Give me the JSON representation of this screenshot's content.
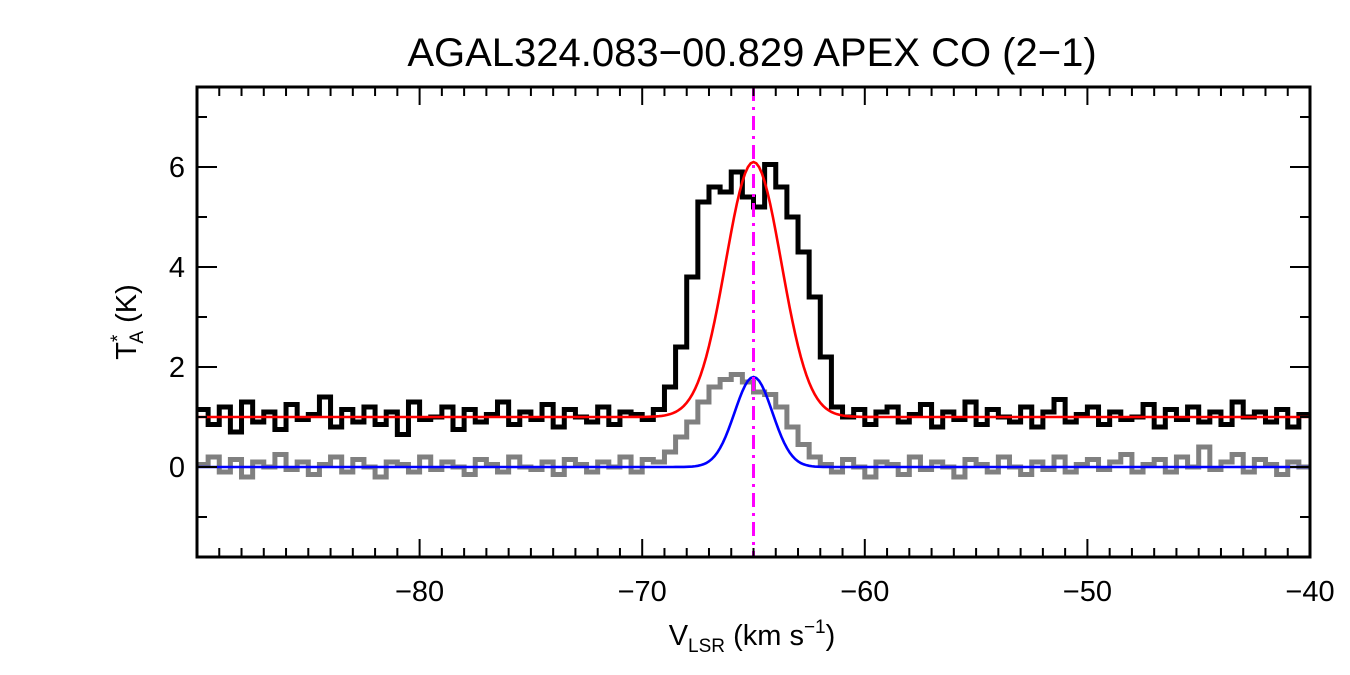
{
  "chart_data": {
    "type": "line",
    "title": "AGAL324.083−00.829  APEX CO (2−1)",
    "xlabel": {
      "main": "V",
      "sub": "LSR",
      "unit_pre": " (km s",
      "sup": "−1",
      "unit_post": ")"
    },
    "ylabel": {
      "main": "T",
      "sup": "*",
      "sub": "A",
      "unit": " (K)"
    },
    "xlim": [
      -90,
      -40
    ],
    "ylim": [
      -1.8,
      7.6
    ],
    "xticks": [
      -80,
      -70,
      -60,
      -50,
      -40
    ],
    "xtick_labels": [
      "−80",
      "−70",
      "−60",
      "−50",
      "−40"
    ],
    "yticks": [
      0,
      2,
      4,
      6
    ],
    "ytick_labels": [
      "0",
      "2",
      "4",
      "6"
    ],
    "vline": {
      "x": -65.0,
      "color": "#ff00ff",
      "style": "dash-dot"
    },
    "series": [
      {
        "style": "step",
        "color": "#000000",
        "x": [
          -90.0,
          -89.5,
          -89.0,
          -88.5,
          -88.0,
          -87.5,
          -87.0,
          -86.5,
          -86.0,
          -85.5,
          -85.0,
          -84.5,
          -84.0,
          -83.5,
          -83.0,
          -82.5,
          -82.0,
          -81.5,
          -81.0,
          -80.5,
          -80.0,
          -79.5,
          -79.0,
          -78.5,
          -78.0,
          -77.5,
          -77.0,
          -76.5,
          -76.0,
          -75.5,
          -75.0,
          -74.5,
          -74.0,
          -73.5,
          -73.0,
          -72.5,
          -72.0,
          -71.5,
          -71.0,
          -70.5,
          -70.0,
          -69.5,
          -69.0,
          -68.5,
          -68.0,
          -67.5,
          -67.0,
          -66.5,
          -66.0,
          -65.5,
          -65.0,
          -64.5,
          -64.0,
          -63.5,
          -63.0,
          -62.5,
          -62.0,
          -61.5,
          -61.0,
          -60.5,
          -60.0,
          -59.5,
          -59.0,
          -58.5,
          -58.0,
          -57.5,
          -57.0,
          -56.5,
          -56.0,
          -55.5,
          -55.0,
          -54.5,
          -54.0,
          -53.5,
          -53.0,
          -52.5,
          -52.0,
          -51.5,
          -51.0,
          -50.5,
          -50.0,
          -49.5,
          -49.0,
          -48.5,
          -48.0,
          -47.5,
          -47.0,
          -46.5,
          -46.0,
          -45.5,
          -45.0,
          -44.5,
          -44.0,
          -43.5,
          -43.0,
          -42.5,
          -42.0,
          -41.5,
          -41.0,
          -40.5
        ],
        "y": [
          1.15,
          0.85,
          1.2,
          0.7,
          1.3,
          0.9,
          1.1,
          0.75,
          1.25,
          0.95,
          1.05,
          1.4,
          0.8,
          1.15,
          0.9,
          1.2,
          0.85,
          1.1,
          0.65,
          1.3,
          0.95,
          1.0,
          1.2,
          0.75,
          1.15,
          0.9,
          1.05,
          1.3,
          0.85,
          1.1,
          0.95,
          1.25,
          0.8,
          1.15,
          1.0,
          0.9,
          1.2,
          0.85,
          1.1,
          1.05,
          0.95,
          1.15,
          1.6,
          2.4,
          3.8,
          5.3,
          5.6,
          5.5,
          5.9,
          5.4,
          5.2,
          6.05,
          5.6,
          5.0,
          4.3,
          3.4,
          2.2,
          1.2,
          1.0,
          1.15,
          0.85,
          1.1,
          1.2,
          0.9,
          1.05,
          1.25,
          0.8,
          1.1,
          0.95,
          1.3,
          0.85,
          1.15,
          1.0,
          0.9,
          1.2,
          0.8,
          1.1,
          1.35,
          0.9,
          1.05,
          1.2,
          0.85,
          1.1,
          0.95,
          1.0,
          1.25,
          0.8,
          1.15,
          0.95,
          1.2,
          0.9,
          1.1,
          0.85,
          1.3,
          1.0,
          1.1,
          0.9,
          1.15,
          0.8,
          1.05
        ]
      },
      {
        "style": "step",
        "color": "#808080",
        "x": [
          -90.0,
          -89.5,
          -89.0,
          -88.5,
          -88.0,
          -87.5,
          -87.0,
          -86.5,
          -86.0,
          -85.5,
          -85.0,
          -84.5,
          -84.0,
          -83.5,
          -83.0,
          -82.5,
          -82.0,
          -81.5,
          -81.0,
          -80.5,
          -80.0,
          -79.5,
          -79.0,
          -78.5,
          -78.0,
          -77.5,
          -77.0,
          -76.5,
          -76.0,
          -75.5,
          -75.0,
          -74.5,
          -74.0,
          -73.5,
          -73.0,
          -72.5,
          -72.0,
          -71.5,
          -71.0,
          -70.5,
          -70.0,
          -69.5,
          -69.0,
          -68.5,
          -68.0,
          -67.5,
          -67.0,
          -66.5,
          -66.0,
          -65.5,
          -65.0,
          -64.5,
          -64.0,
          -63.5,
          -63.0,
          -62.5,
          -62.0,
          -61.5,
          -61.0,
          -60.5,
          -60.0,
          -59.5,
          -59.0,
          -58.5,
          -58.0,
          -57.5,
          -57.0,
          -56.5,
          -56.0,
          -55.5,
          -55.0,
          -54.5,
          -54.0,
          -53.5,
          -53.0,
          -52.5,
          -52.0,
          -51.5,
          -51.0,
          -50.5,
          -50.0,
          -49.5,
          -49.0,
          -48.5,
          -48.0,
          -47.5,
          -47.0,
          -46.5,
          -46.0,
          -45.5,
          -45.0,
          -44.5,
          -44.0,
          -43.5,
          -43.0,
          -42.5,
          -42.0,
          -41.5,
          -41.0,
          -40.5
        ],
        "y": [
          0.05,
          0.2,
          -0.1,
          0.15,
          -0.2,
          0.1,
          0.0,
          0.25,
          -0.05,
          0.1,
          -0.15,
          0.05,
          0.2,
          -0.1,
          0.15,
          0.0,
          -0.2,
          0.1,
          0.05,
          -0.1,
          0.2,
          -0.05,
          0.1,
          0.0,
          -0.15,
          0.15,
          0.05,
          -0.1,
          0.2,
          0.0,
          -0.05,
          0.1,
          -0.15,
          0.15,
          0.05,
          -0.1,
          0.1,
          0.0,
          0.2,
          -0.1,
          0.15,
          0.1,
          0.3,
          0.6,
          0.9,
          1.3,
          1.6,
          1.75,
          1.85,
          1.7,
          1.5,
          1.45,
          1.2,
          0.8,
          0.45,
          0.2,
          0.05,
          -0.1,
          0.15,
          0.0,
          -0.2,
          0.1,
          0.05,
          -0.15,
          0.2,
          -0.05,
          0.1,
          0.0,
          -0.2,
          0.15,
          0.05,
          -0.1,
          0.2,
          0.0,
          -0.15,
          0.1,
          -0.05,
          0.2,
          -0.1,
          0.05,
          0.15,
          -0.05,
          0.1,
          0.25,
          -0.1,
          0.05,
          0.15,
          -0.1,
          0.2,
          0.0,
          0.4,
          -0.05,
          0.1,
          0.25,
          -0.1,
          0.15,
          0.05,
          -0.15,
          0.1,
          0.0
        ]
      },
      {
        "style": "gaussian",
        "color": "#ff0000",
        "amplitude": 5.1,
        "center": -65.0,
        "sigma": 1.25,
        "baseline": 1.0
      },
      {
        "style": "gaussian",
        "color": "#0000ff",
        "amplitude": 1.8,
        "center": -65.0,
        "sigma": 0.85,
        "baseline": 0.0
      }
    ]
  }
}
